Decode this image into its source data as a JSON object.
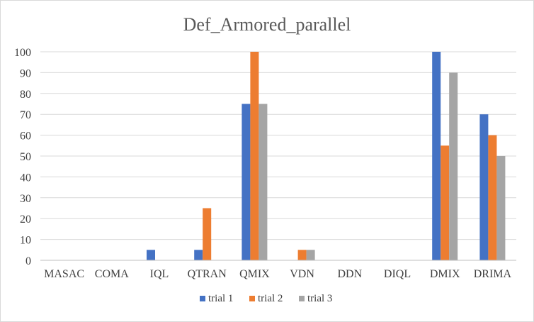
{
  "chart_data": {
    "type": "bar",
    "title": "Def_Armored_parallel",
    "xlabel": "",
    "ylabel": "",
    "ylim": [
      0,
      100
    ],
    "yticks": [
      0,
      10,
      20,
      30,
      40,
      50,
      60,
      70,
      80,
      90,
      100
    ],
    "grid": true,
    "legend_position": "bottom",
    "categories": [
      "MASAC",
      "COMA",
      "IQL",
      "QTRAN",
      "QMIX",
      "VDN",
      "DDN",
      "DIQL",
      "DMIX",
      "DRIMA"
    ],
    "series": [
      {
        "name": "trial 1",
        "color": "#4472c4",
        "values": [
          0,
          0,
          5,
          5,
          75,
          0,
          0,
          0,
          100,
          70
        ]
      },
      {
        "name": "trial 2",
        "color": "#ed7d31",
        "values": [
          0,
          0,
          0,
          25,
          100,
          5,
          0,
          0,
          55,
          60
        ]
      },
      {
        "name": "trial 3",
        "color": "#a5a5a5",
        "values": [
          0,
          0,
          0,
          0,
          75,
          5,
          0,
          0,
          90,
          50
        ]
      }
    ]
  }
}
